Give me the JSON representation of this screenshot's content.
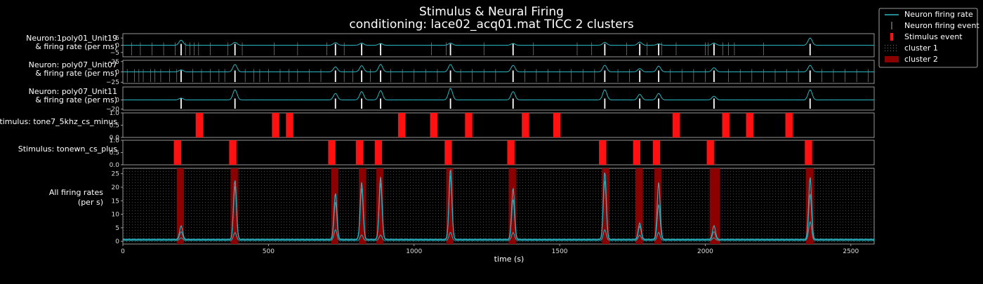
{
  "chart_data": {
    "type": "line",
    "title": "Stimulus & Neural Firing",
    "subtitle": "conditioning: lace02_acq01.mat    TICC  2  clusters",
    "xlabel": "time  (s)",
    "xlim": [
      0,
      2580
    ],
    "x_ticks": [
      "0",
      "500",
      "1000",
      "1500",
      "2000",
      "2500"
    ],
    "x_tick_values": [
      0,
      500,
      1000,
      1500,
      2000,
      2500
    ],
    "colors": {
      "background": "#000000",
      "firing_rate": "#2ab7c4",
      "neuron_event": "#ffffff",
      "stimulus": "#ff1111",
      "cluster_2": "#8b0000",
      "cluster_1": "#777777"
    },
    "legend": {
      "placement": "outside-top-right",
      "entries": [
        {
          "label": "Neuron firing rate",
          "kind": "line"
        },
        {
          "label": "Neuron firing event",
          "kind": "vline"
        },
        {
          "label": "Stimulus event",
          "kind": "redbar"
        },
        {
          "label": "cluster  1",
          "kind": "dots"
        },
        {
          "label": "cluster  2",
          "kind": "darkred"
        }
      ]
    },
    "burst_times": [
      200,
      385,
      730,
      820,
      885,
      1125,
      1340,
      1655,
      1775,
      1840,
      2030,
      2360
    ],
    "panels": [
      {
        "id": "unit19",
        "label": [
          "Neuron:1poly01_Unit19",
          "& firing rate (per ms)"
        ],
        "yticks": [
          "5",
          "0",
          "−5"
        ],
        "ytick_values": [
          5,
          0,
          -5
        ],
        "ylim": [
          -8,
          8
        ],
        "baseline": 0,
        "peak_times": [
          200,
          385,
          730,
          820,
          885,
          1125,
          1340,
          1655,
          1775,
          1840,
          2030,
          2360
        ],
        "peak_values": [
          3.5,
          2.0,
          1.8,
          1.5,
          1.2,
          1.5,
          1.2,
          2.0,
          2.2,
          1.0,
          1.5,
          5.0
        ],
        "extra_events": [
          30,
          60,
          100,
          140,
          180,
          215,
          230,
          245,
          260,
          300,
          360,
          410,
          520,
          600,
          700,
          760,
          1060,
          1110,
          1240,
          1410,
          1560,
          1610,
          1730,
          1800,
          1850,
          1900,
          2000,
          2010,
          2060,
          2080,
          2100,
          2200
        ]
      },
      {
        "id": "unit07",
        "label": [
          "Neuron: poly07_Unit07",
          "& firing rate (per ms)"
        ],
        "yticks": [
          "25",
          "0",
          "−25"
        ],
        "ytick_values": [
          25,
          0,
          -25
        ],
        "ylim": [
          -28,
          28
        ],
        "baseline": 0,
        "peak_times": [
          200,
          385,
          730,
          820,
          885,
          1125,
          1340,
          1655,
          1775,
          1840,
          2030,
          2360
        ],
        "peak_values": [
          5,
          18,
          12,
          15,
          18,
          18,
          16,
          16,
          8,
          14,
          10,
          16
        ],
        "extra_events": [
          15,
          40,
          55,
          70,
          95,
          110,
          130,
          160,
          185,
          240,
          270,
          300,
          330,
          350,
          420,
          450,
          470,
          500,
          540,
          570,
          600,
          640,
          680,
          760,
          790,
          850,
          920,
          960,
          1000,
          1040,
          1080,
          1160,
          1200,
          1240,
          1280,
          1380,
          1420,
          1460,
          1500,
          1540,
          1580,
          1620,
          1700,
          1740,
          1880,
          1920,
          1960,
          2000,
          2080,
          2120,
          2160,
          2200,
          2240,
          2280,
          2320,
          2400,
          2440,
          2480,
          2520,
          2560
        ]
      },
      {
        "id": "unit11",
        "label": [
          "Neuron: poly07_Unit11",
          "& firing rate (per ms)"
        ],
        "yticks": [
          "0",
          "−20"
        ],
        "ytick_values": [
          0,
          -20
        ],
        "ylim": [
          -22,
          28
        ],
        "baseline": 0,
        "peak_times": [
          200,
          385,
          730,
          820,
          885,
          1125,
          1340,
          1655,
          1775,
          1840,
          2030,
          2360
        ],
        "peak_values": [
          4,
          22,
          14,
          18,
          20,
          25,
          18,
          22,
          12,
          14,
          8,
          22
        ],
        "extra_events": []
      }
    ],
    "stimulus_panels": [
      {
        "id": "cs_minus",
        "label": "Stimulus: tone7_5khz_cs_minus",
        "yticks": [
          "1.0",
          "0.5",
          "0.0"
        ],
        "ytick_values": [
          1.0,
          0.5,
          0.0
        ],
        "ylim": [
          0,
          1
        ],
        "events": [
          [
            250,
            275
          ],
          [
            512,
            537
          ],
          [
            560,
            585
          ],
          [
            945,
            970
          ],
          [
            1055,
            1080
          ],
          [
            1175,
            1200
          ],
          [
            1370,
            1395
          ],
          [
            1478,
            1503
          ],
          [
            1888,
            1913
          ],
          [
            2058,
            2083
          ],
          [
            2140,
            2165
          ],
          [
            2275,
            2300
          ]
        ]
      },
      {
        "id": "cs_plus",
        "label": "Stimulus: tonewn_cs_plus",
        "yticks": [
          "1.0",
          "0.5",
          "0.0"
        ],
        "ytick_values": [
          1.0,
          0.5,
          0.0
        ],
        "ylim": [
          0,
          1
        ],
        "events": [
          [
            175,
            200
          ],
          [
            365,
            390
          ],
          [
            705,
            730
          ],
          [
            800,
            825
          ],
          [
            865,
            890
          ],
          [
            1105,
            1130
          ],
          [
            1320,
            1345
          ],
          [
            1635,
            1660
          ],
          [
            1752,
            1777
          ],
          [
            1820,
            1845
          ],
          [
            2005,
            2030
          ],
          [
            2342,
            2367
          ]
        ]
      }
    ],
    "bottom_panel": {
      "label": [
        "All firing rates",
        "(per s)"
      ],
      "yticks": [
        "0",
        "5",
        "10",
        "15",
        "20",
        "25"
      ],
      "ytick_values": [
        0,
        5,
        10,
        15,
        20,
        25
      ],
      "ylim": [
        -1,
        27
      ],
      "series": [
        {
          "peak_values": [
            5,
            22,
            17,
            21,
            23,
            26,
            19,
            25,
            6,
            21,
            5,
            23
          ],
          "baseline": 0.8
        },
        {
          "peak_values": [
            3,
            20,
            14,
            19,
            21,
            24,
            15,
            22,
            5,
            13,
            3,
            17
          ],
          "baseline": 0.6
        },
        {
          "peak_values": [
            1,
            3,
            4,
            2,
            2,
            3,
            3,
            4,
            2,
            3,
            1,
            7
          ],
          "baseline": 0.3
        }
      ],
      "cluster2_spans": [
        [
          185,
          210
        ],
        [
          370,
          395
        ],
        [
          715,
          740
        ],
        [
          810,
          835
        ],
        [
          870,
          895
        ],
        [
          1110,
          1135
        ],
        [
          1325,
          1350
        ],
        [
          1645,
          1670
        ],
        [
          1760,
          1785
        ],
        [
          1825,
          1850
        ],
        [
          2015,
          2050
        ],
        [
          2345,
          2372
        ]
      ]
    }
  }
}
